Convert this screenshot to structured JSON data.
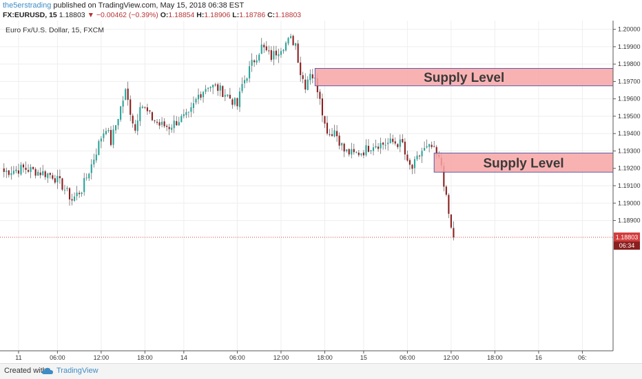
{
  "header": {
    "author": "the5erstrading",
    "published_text": "published on TradingView.com, May 15, 2018 06:38 EST",
    "symbol": "FX:EURUSD, 15",
    "last": "1.18803",
    "change": "−0.00462 (−0.39%)",
    "o_label": "O:",
    "o": "1.18854",
    "h_label": "H:",
    "h": "1.18906",
    "l_label": "L:",
    "l": "1.18786",
    "c_label": "C:",
    "c": "1.18803"
  },
  "footer": {
    "created_with": "Created with",
    "brand": "TradingView"
  },
  "colors": {
    "up": "#26a69a",
    "down": "#8b1f1f",
    "zone_fill": "#f8a5a5",
    "zone_border": "#5a5aa8",
    "price_tag": "#d33c3c"
  },
  "chart_data": {
    "type": "candlestick",
    "title": "Euro Fx/U.S. Dollar, 15, FXCM",
    "ylim": [
      1.1815,
      1.2005
    ],
    "yticks": [
      "1.20000",
      "1.19900",
      "1.19800",
      "1.19700",
      "1.19600",
      "1.19500",
      "1.19400",
      "1.19300",
      "1.19200",
      "1.19100",
      "1.19000",
      "1.18900"
    ],
    "ytick_values": [
      1.2,
      1.199,
      1.198,
      1.197,
      1.196,
      1.195,
      1.194,
      1.193,
      1.192,
      1.191,
      1.19,
      1.189
    ],
    "xticks": [
      "11",
      "06:00",
      "12:00",
      "18:00",
      "14",
      "06:00",
      "12:00",
      "18:00",
      "15",
      "06:00",
      "12:00",
      "18:00",
      "16",
      "06:"
    ],
    "xtick_index": [
      6,
      22,
      40,
      58,
      74,
      96,
      114,
      132,
      148,
      166,
      184,
      202,
      220,
      238
    ],
    "last_price": "1.18803",
    "last_price_value": 1.18803,
    "time_label": "06:34",
    "zones": [
      {
        "label": "Supply Level",
        "top": 1.19775,
        "bottom": 1.19675,
        "start_index": 128
      },
      {
        "label": "Supply Level",
        "top": 1.19288,
        "bottom": 1.19178,
        "start_index": 177
      }
    ],
    "anchors": [
      [
        0,
        1.1918
      ],
      [
        8,
        1.192
      ],
      [
        14,
        1.1918
      ],
      [
        20,
        1.1916
      ],
      [
        24,
        1.191
      ],
      [
        28,
        1.1902
      ],
      [
        32,
        1.1908
      ],
      [
        36,
        1.1922
      ],
      [
        40,
        1.1938
      ],
      [
        42,
        1.1944
      ],
      [
        44,
        1.1935
      ],
      [
        48,
        1.1955
      ],
      [
        50,
        1.1964
      ],
      [
        54,
        1.1942
      ],
      [
        56,
        1.1958
      ],
      [
        60,
        1.195
      ],
      [
        64,
        1.1945
      ],
      [
        68,
        1.1944
      ],
      [
        72,
        1.1948
      ],
      [
        76,
        1.195
      ],
      [
        80,
        1.1962
      ],
      [
        84,
        1.1968
      ],
      [
        88,
        1.1966
      ],
      [
        92,
        1.1962
      ],
      [
        96,
        1.1956
      ],
      [
        98,
        1.1968
      ],
      [
        102,
        1.198
      ],
      [
        106,
        1.199
      ],
      [
        110,
        1.1984
      ],
      [
        114,
        1.199
      ],
      [
        118,
        1.1994
      ],
      [
        120,
        1.1992
      ],
      [
        122,
        1.1975
      ],
      [
        124,
        1.1968
      ],
      [
        126,
        1.1976
      ],
      [
        128,
        1.197
      ],
      [
        130,
        1.1962
      ],
      [
        132,
        1.1945
      ],
      [
        134,
        1.194
      ],
      [
        136,
        1.1942
      ],
      [
        140,
        1.193
      ],
      [
        144,
        1.1928
      ],
      [
        148,
        1.193
      ],
      [
        152,
        1.1934
      ],
      [
        156,
        1.1934
      ],
      [
        160,
        1.1935
      ],
      [
        164,
        1.1934
      ],
      [
        166,
        1.1922
      ],
      [
        168,
        1.192
      ],
      [
        172,
        1.193
      ],
      [
        176,
        1.1932
      ],
      [
        180,
        1.1922
      ],
      [
        182,
        1.1902
      ],
      [
        184,
        1.1885
      ],
      [
        185,
        1.188
      ]
    ]
  }
}
